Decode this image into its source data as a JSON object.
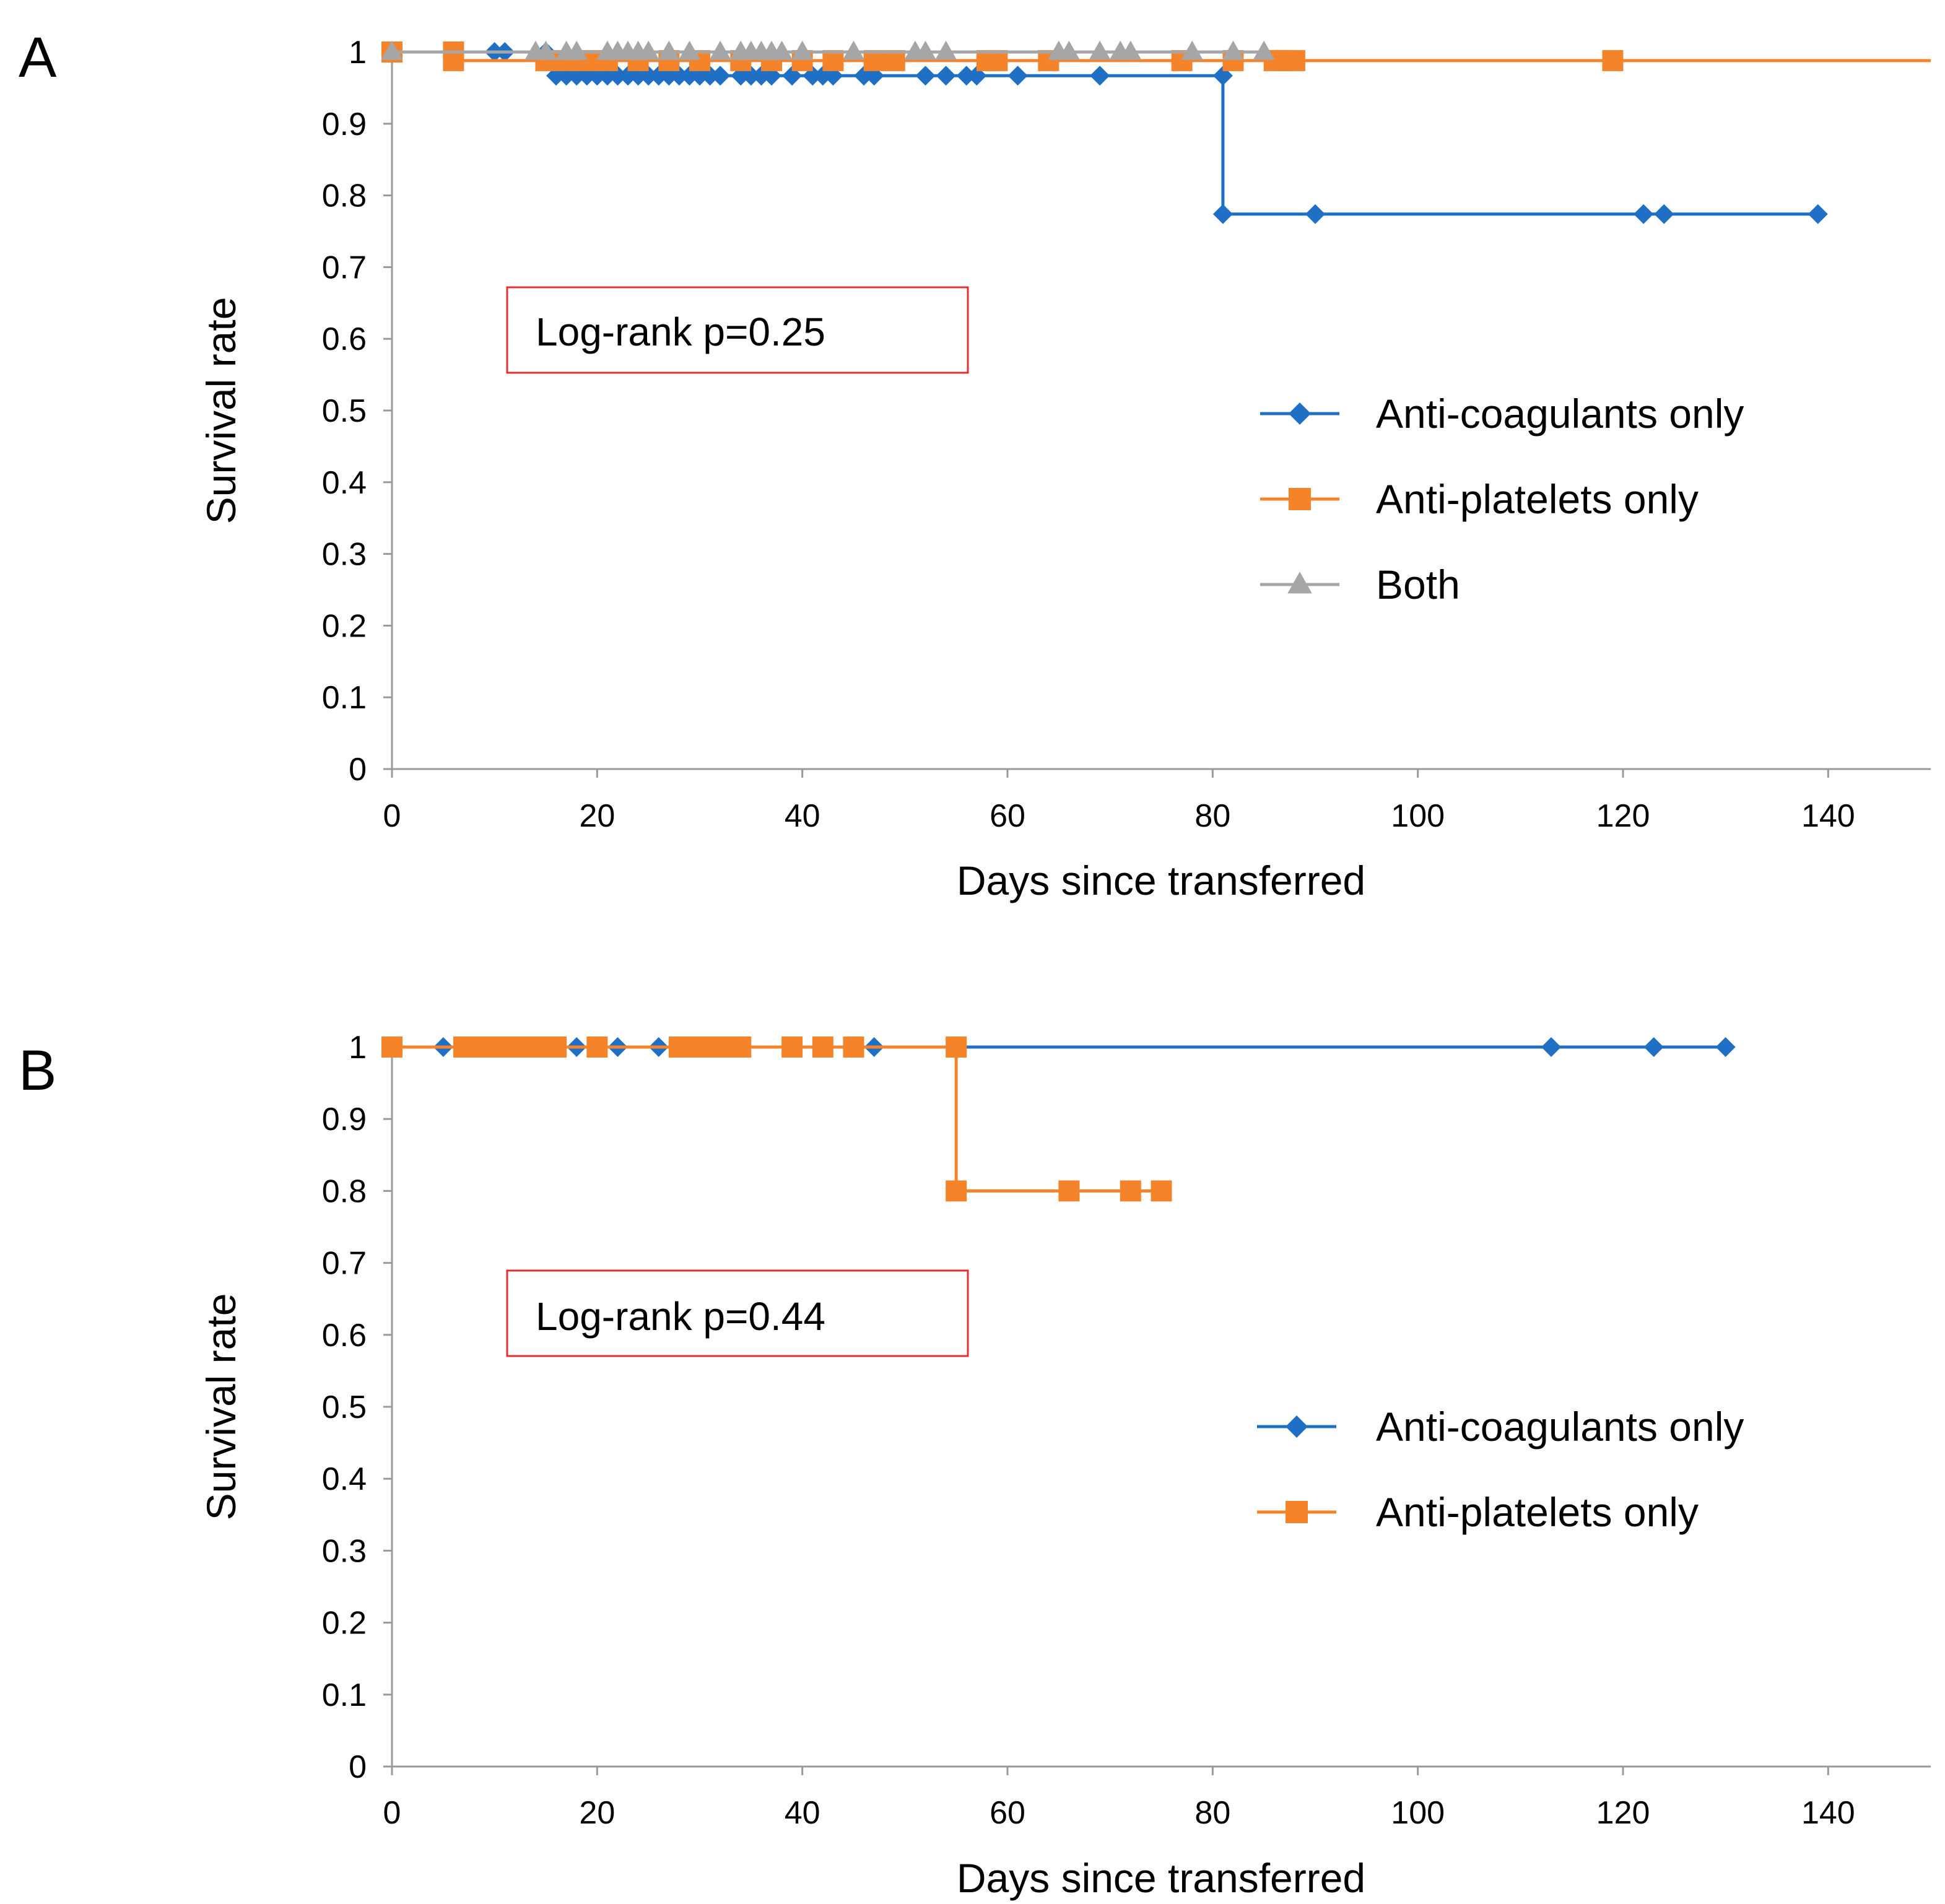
{
  "colors": {
    "anti_coagulants": "#1f6fc5",
    "anti_platelets": "#f5832a",
    "both": "#a6a6a6",
    "annotation_border": "#e03030",
    "axis": "#9a9a9a"
  },
  "chart_data": [
    {
      "type": "line",
      "panel_label": "A",
      "xlabel": "Days since transferred",
      "ylabel": "Survival rate",
      "xlim": [
        0,
        150
      ],
      "ylim": [
        0,
        1
      ],
      "x_ticks": [
        "0",
        "20",
        "40",
        "60",
        "80",
        "100",
        "120",
        "140"
      ],
      "y_ticks": [
        "0",
        "0.1",
        "0.2",
        "0.3",
        "0.4",
        "0.5",
        "0.6",
        "0.7",
        "0.8",
        "0.9",
        "1"
      ],
      "annotation": "Log-rank p=0.25",
      "legend_position": "center-right",
      "series": [
        {
          "name": "Anti-coagulants only",
          "marker": "diamond",
          "color": "#1f6fc5",
          "steps": [
            [
              0,
              1
            ],
            [
              16,
              0.967
            ],
            [
              81,
              0.774
            ]
          ],
          "end_x": 139,
          "markers": [
            [
              0,
              1
            ],
            [
              10,
              1
            ],
            [
              11,
              1
            ],
            [
              15,
              1
            ],
            [
              16,
              0.967
            ],
            [
              17,
              0.967
            ],
            [
              18,
              0.967
            ],
            [
              19,
              0.967
            ],
            [
              20,
              0.967
            ],
            [
              21,
              0.967
            ],
            [
              22,
              0.967
            ],
            [
              23,
              0.967
            ],
            [
              24,
              0.967
            ],
            [
              25,
              0.967
            ],
            [
              26,
              0.967
            ],
            [
              27,
              0.967
            ],
            [
              28,
              0.967
            ],
            [
              29,
              0.967
            ],
            [
              30,
              0.967
            ],
            [
              31,
              0.967
            ],
            [
              32,
              0.967
            ],
            [
              34,
              0.967
            ],
            [
              35,
              0.967
            ],
            [
              36,
              0.967
            ],
            [
              37,
              0.967
            ],
            [
              39,
              0.967
            ],
            [
              41,
              0.967
            ],
            [
              42,
              0.967
            ],
            [
              43,
              0.967
            ],
            [
              46,
              0.967
            ],
            [
              47,
              0.967
            ],
            [
              52,
              0.967
            ],
            [
              54,
              0.967
            ],
            [
              56,
              0.967
            ],
            [
              57,
              0.967
            ],
            [
              61,
              0.967
            ],
            [
              69,
              0.967
            ],
            [
              81,
              0.967
            ],
            [
              81,
              0.774
            ],
            [
              90,
              0.774
            ],
            [
              122,
              0.774
            ],
            [
              124,
              0.774
            ],
            [
              139,
              0.774
            ]
          ]
        },
        {
          "name": "Anti-platelets only",
          "marker": "square",
          "color": "#f5832a",
          "steps": [
            [
              0,
              1
            ],
            [
              6,
              0.988
            ]
          ],
          "end_x": 150,
          "markers": [
            [
              0,
              1
            ],
            [
              6,
              1
            ],
            [
              6,
              0.988
            ],
            [
              15,
              0.988
            ],
            [
              17,
              0.988
            ],
            [
              19,
              0.988
            ],
            [
              21,
              0.988
            ],
            [
              24,
              0.988
            ],
            [
              27,
              0.988
            ],
            [
              30,
              0.988
            ],
            [
              34,
              0.988
            ],
            [
              37,
              0.988
            ],
            [
              40,
              0.988
            ],
            [
              43,
              0.988
            ],
            [
              47,
              0.988
            ],
            [
              49,
              0.988
            ],
            [
              58,
              0.988
            ],
            [
              59,
              0.988
            ],
            [
              64,
              0.988
            ],
            [
              77,
              0.988
            ],
            [
              82,
              0.988
            ],
            [
              86,
              0.988
            ],
            [
              87,
              0.988
            ],
            [
              88,
              0.988
            ],
            [
              119,
              0.988
            ]
          ]
        },
        {
          "name": "Both",
          "marker": "triangle",
          "color": "#a6a6a6",
          "steps": [
            [
              0,
              1
            ]
          ],
          "end_x": 85,
          "markers": [
            [
              0,
              1
            ],
            [
              14,
              1
            ],
            [
              15,
              1
            ],
            [
              17,
              1
            ],
            [
              18,
              1
            ],
            [
              21,
              1
            ],
            [
              22,
              1
            ],
            [
              23,
              1
            ],
            [
              24,
              1
            ],
            [
              25,
              1
            ],
            [
              27,
              1
            ],
            [
              29,
              1
            ],
            [
              32,
              1
            ],
            [
              34,
              1
            ],
            [
              35,
              1
            ],
            [
              36,
              1
            ],
            [
              37,
              1
            ],
            [
              38,
              1
            ],
            [
              40,
              1
            ],
            [
              45,
              1
            ],
            [
              51,
              1
            ],
            [
              52,
              1
            ],
            [
              54,
              1
            ],
            [
              65,
              1
            ],
            [
              66,
              1
            ],
            [
              69,
              1
            ],
            [
              71,
              1
            ],
            [
              72,
              1
            ],
            [
              78,
              1
            ],
            [
              82,
              1
            ],
            [
              85,
              1
            ]
          ]
        }
      ]
    },
    {
      "type": "line",
      "panel_label": "B",
      "xlabel": "Days since transferred",
      "ylabel": "Survival rate",
      "xlim": [
        0,
        150
      ],
      "ylim": [
        0,
        1
      ],
      "x_ticks": [
        "0",
        "20",
        "40",
        "60",
        "80",
        "100",
        "120",
        "140"
      ],
      "y_ticks": [
        "0",
        "0.1",
        "0.2",
        "0.3",
        "0.4",
        "0.5",
        "0.6",
        "0.7",
        "0.8",
        "0.9",
        "1"
      ],
      "annotation": "Log-rank p=0.44",
      "legend_position": "center-right",
      "series": [
        {
          "name": "Anti-coagulants only",
          "marker": "diamond",
          "color": "#1f6fc5",
          "steps": [
            [
              0,
              1
            ]
          ],
          "end_x": 130,
          "markers": [
            [
              0,
              1
            ],
            [
              5,
              1
            ],
            [
              9,
              1
            ],
            [
              18,
              1
            ],
            [
              22,
              1
            ],
            [
              26,
              1
            ],
            [
              47,
              1
            ],
            [
              113,
              1
            ],
            [
              123,
              1
            ],
            [
              130,
              1
            ]
          ]
        },
        {
          "name": "Anti-platelets only",
          "marker": "square",
          "color": "#f5832a",
          "steps": [
            [
              0,
              1
            ],
            [
              55,
              0.8
            ]
          ],
          "end_x": 75,
          "markers": [
            [
              0,
              1
            ],
            [
              7,
              1
            ],
            [
              8,
              1
            ],
            [
              9,
              1
            ],
            [
              10,
              1
            ],
            [
              11,
              1
            ],
            [
              13,
              1
            ],
            [
              14,
              1
            ],
            [
              15,
              1
            ],
            [
              16,
              1
            ],
            [
              20,
              1
            ],
            [
              28,
              1
            ],
            [
              29,
              1
            ],
            [
              30,
              1
            ],
            [
              31,
              1
            ],
            [
              32,
              1
            ],
            [
              33,
              1
            ],
            [
              34,
              1
            ],
            [
              39,
              1
            ],
            [
              42,
              1
            ],
            [
              45,
              1
            ],
            [
              55,
              1
            ],
            [
              55,
              0.8
            ],
            [
              66,
              0.8
            ],
            [
              72,
              0.8
            ],
            [
              75,
              0.8
            ]
          ]
        }
      ]
    }
  ]
}
